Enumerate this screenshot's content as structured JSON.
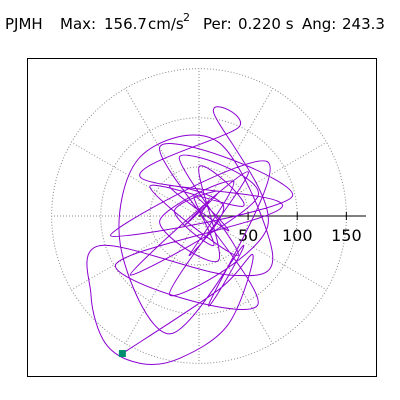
{
  "chart_data": {
    "type": "polar",
    "station": "PJMH",
    "max_label": "Max:",
    "max": 156.7,
    "unit": "cm/s",
    "unit_power": "2",
    "period_label": "Per:",
    "period": "0.220 s",
    "angle_label": "Ang:",
    "angle": 243.3,
    "rlim": [
      0,
      170
    ],
    "rticks": [
      50,
      100,
      150
    ],
    "color": "#8c00d2",
    "end_marker_color": "#009070",
    "x": [
      0,
      10,
      -15,
      20,
      -25,
      15,
      -5,
      30,
      -30,
      25,
      -10,
      35,
      -40,
      20,
      0,
      45,
      -50,
      40,
      -20,
      60,
      -70,
      50,
      -30,
      70,
      15,
      40,
      -60,
      85,
      -85,
      60,
      -40,
      95,
      -90,
      70,
      10,
      45,
      -30,
      -80,
      -60,
      20,
      75,
      30,
      -100,
      -110,
      -95,
      -60,
      -20,
      30,
      55,
      20,
      -78
    ],
    "y": [
      0,
      15,
      -10,
      25,
      5,
      -30,
      20,
      -15,
      30,
      10,
      -40,
      35,
      -5,
      -45,
      50,
      10,
      30,
      -40,
      60,
      20,
      -60,
      45,
      -80,
      -10,
      105,
      90,
      40,
      10,
      -50,
      -90,
      70,
      20,
      -20,
      55,
      -90,
      -30,
      -120,
      -30,
      60,
      75,
      -40,
      -60,
      -30,
      -80,
      -130,
      -150,
      -145,
      -110,
      -40,
      -75,
      -140
    ]
  }
}
